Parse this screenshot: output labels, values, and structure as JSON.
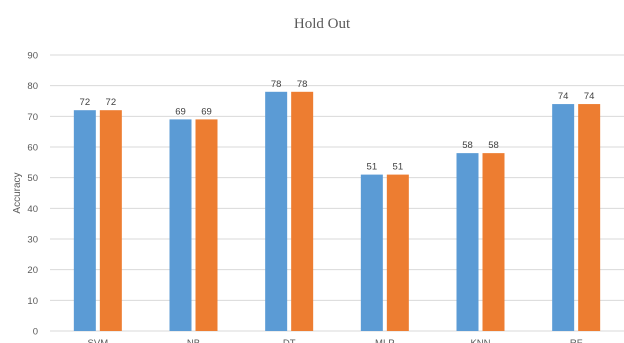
{
  "chart_data": {
    "type": "bar",
    "title": "Hold Out",
    "xlabel": "",
    "ylabel": "Accuracy",
    "ylim": [
      0,
      90
    ],
    "yticks": [
      0,
      10,
      20,
      30,
      40,
      50,
      60,
      70,
      80,
      90
    ],
    "grid": true,
    "legend": "none",
    "categories": [
      "SVM",
      "NB",
      "DT",
      "MLP",
      "KNN",
      "RF"
    ],
    "series": [
      {
        "values": [
          72,
          69,
          78,
          51,
          58,
          74
        ],
        "color": "#5b9bd5"
      },
      {
        "values": [
          72,
          69,
          78,
          51,
          58,
          74
        ],
        "color": "#ed7d31"
      }
    ]
  }
}
